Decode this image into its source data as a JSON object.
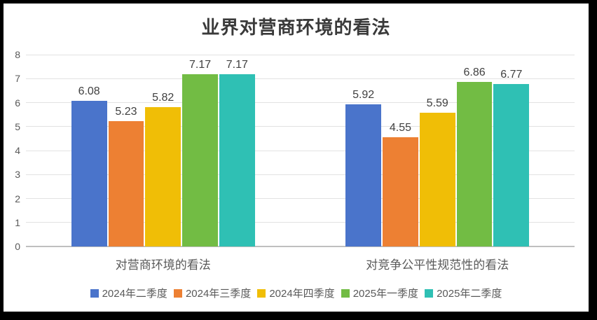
{
  "frame": {
    "border_color": "#000000",
    "background_color": "#ffffff"
  },
  "chart_data": {
    "type": "bar",
    "title": "业界对营商环境的看法",
    "categories": [
      "对营商环境的看法",
      "对竞争公平性规范性的看法"
    ],
    "series": [
      {
        "name": "2024年二季度",
        "color": "#4a74cb",
        "values": [
          6.08,
          5.92
        ]
      },
      {
        "name": "2024年三季度",
        "color": "#ed8033",
        "values": [
          5.23,
          4.55
        ]
      },
      {
        "name": "2024年四季度",
        "color": "#f0be06",
        "values": [
          5.82,
          5.59
        ]
      },
      {
        "name": "2025年一季度",
        "color": "#72bc44",
        "values": [
          7.17,
          6.86
        ]
      },
      {
        "name": "2025年二季度",
        "color": "#2fc0b4",
        "values": [
          7.17,
          6.77
        ]
      }
    ],
    "data_labels": [
      [
        "6.08",
        "5.23",
        "5.82",
        "7.17",
        "7.17"
      ],
      [
        "5.92",
        "4.55",
        "5.59",
        "6.86",
        "6.77"
      ]
    ],
    "ylim": [
      0,
      8
    ],
    "yticks": [
      0,
      1,
      2,
      3,
      4,
      5,
      6,
      7,
      8
    ],
    "grid": true,
    "legend_position": "bottom",
    "gridline_color": "#e2e2e2",
    "baseline_color": "#bfbfbf",
    "label_color": "#404040",
    "axis_text_color": "#595959"
  }
}
